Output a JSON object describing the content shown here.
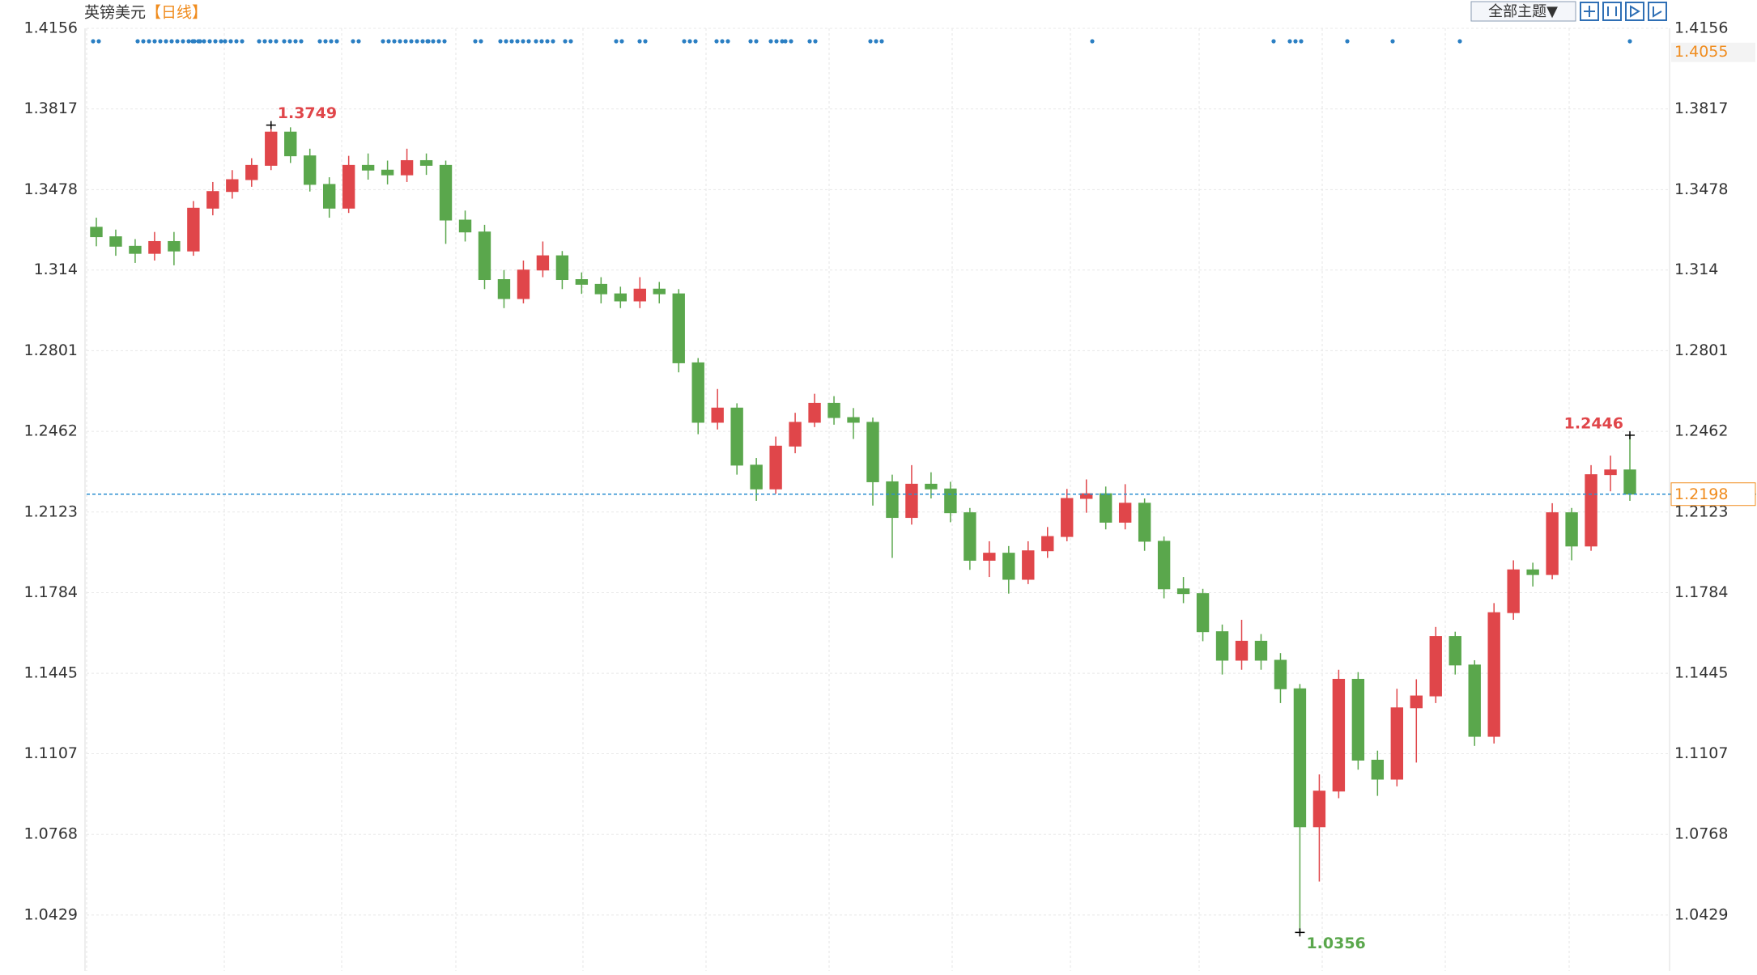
{
  "chart_data": {
    "type": "candlestick",
    "title": "英镑美元",
    "subtitle": "【日线】",
    "toolbar_button": "全部主题▼",
    "categories": [
      null,
      null,
      null,
      null,
      null,
      null,
      null,
      null,
      null,
      null,
      null,
      null,
      null,
      null,
      null,
      null,
      null,
      null,
      null,
      null,
      null,
      null,
      null,
      null,
      null,
      null,
      null,
      null,
      null,
      null,
      null,
      null,
      null,
      null,
      null,
      null,
      null,
      null,
      null,
      null,
      null,
      null,
      null,
      null,
      null,
      null,
      null,
      null,
      null,
      null,
      null,
      null,
      null,
      null,
      null,
      null,
      null,
      null,
      null,
      null,
      null,
      null,
      null,
      null,
      null,
      null,
      null,
      null,
      null,
      null,
      null,
      null,
      null,
      null,
      null,
      null,
      null,
      null,
      null,
      null
    ],
    "open": [
      1.332,
      1.328,
      1.324,
      1.321,
      1.326,
      1.322,
      1.34,
      1.347,
      1.352,
      1.358,
      1.372,
      1.362,
      1.35,
      1.34,
      1.358,
      1.356,
      1.354,
      1.36,
      1.358,
      1.335,
      1.33,
      1.31,
      1.302,
      1.314,
      1.32,
      1.31,
      1.308,
      1.304,
      1.301,
      1.306,
      1.304,
      1.275,
      1.25,
      1.256,
      1.232,
      1.222,
      1.24,
      1.25,
      1.258,
      1.252,
      1.25,
      1.225,
      1.21,
      1.224,
      1.222,
      1.212,
      1.192,
      1.195,
      1.184,
      1.196,
      1.202,
      1.218,
      1.22,
      1.208,
      1.216,
      1.2,
      1.18,
      1.178,
      1.162,
      1.15,
      1.158,
      1.15,
      1.138,
      1.08,
      1.095,
      1.142,
      1.108,
      1.1,
      1.13,
      1.135,
      1.16,
      1.148,
      1.118,
      1.17,
      1.188,
      1.186,
      1.212,
      1.198,
      1.228,
      1.23
    ],
    "high": [
      1.336,
      1.331,
      1.327,
      1.33,
      1.33,
      1.343,
      1.351,
      1.356,
      1.361,
      1.3749,
      1.374,
      1.365,
      1.353,
      1.362,
      1.363,
      1.36,
      1.365,
      1.363,
      1.36,
      1.339,
      1.333,
      1.314,
      1.318,
      1.326,
      1.322,
      1.313,
      1.311,
      1.307,
      1.311,
      1.309,
      1.306,
      1.277,
      1.264,
      1.258,
      1.235,
      1.244,
      1.254,
      1.262,
      1.261,
      1.256,
      1.252,
      1.228,
      1.232,
      1.229,
      1.225,
      1.214,
      1.2,
      1.198,
      1.2,
      1.206,
      1.222,
      1.226,
      1.223,
      1.224,
      1.218,
      1.202,
      1.185,
      1.18,
      1.165,
      1.167,
      1.161,
      1.153,
      1.14,
      1.102,
      1.146,
      1.145,
      1.112,
      1.138,
      1.142,
      1.164,
      1.162,
      1.15,
      1.174,
      1.192,
      1.191,
      1.216,
      1.214,
      1.232,
      1.236,
      1.2446
    ],
    "low": [
      1.324,
      1.32,
      1.317,
      1.318,
      1.316,
      1.32,
      1.337,
      1.344,
      1.349,
      1.356,
      1.359,
      1.347,
      1.336,
      1.338,
      1.352,
      1.35,
      1.351,
      1.354,
      1.325,
      1.326,
      1.306,
      1.298,
      1.3,
      1.311,
      1.306,
      1.304,
      1.3,
      1.298,
      1.298,
      1.3,
      1.271,
      1.245,
      1.247,
      1.228,
      1.217,
      1.22,
      1.237,
      1.248,
      1.249,
      1.243,
      1.215,
      1.193,
      1.207,
      1.218,
      1.208,
      1.188,
      1.185,
      1.178,
      1.182,
      1.193,
      1.2,
      1.212,
      1.205,
      1.205,
      1.196,
      1.176,
      1.174,
      1.158,
      1.144,
      1.146,
      1.146,
      1.132,
      1.0356,
      1.057,
      1.092,
      1.104,
      1.093,
      1.097,
      1.107,
      1.132,
      1.144,
      1.114,
      1.115,
      1.167,
      1.181,
      1.184,
      1.192,
      1.196,
      1.221,
      1.217
    ],
    "close": [
      1.328,
      1.324,
      1.321,
      1.326,
      1.322,
      1.34,
      1.347,
      1.352,
      1.358,
      1.372,
      1.362,
      1.35,
      1.34,
      1.358,
      1.356,
      1.354,
      1.36,
      1.358,
      1.335,
      1.33,
      1.31,
      1.302,
      1.314,
      1.32,
      1.31,
      1.308,
      1.304,
      1.301,
      1.306,
      1.304,
      1.275,
      1.25,
      1.256,
      1.232,
      1.222,
      1.24,
      1.25,
      1.258,
      1.252,
      1.25,
      1.225,
      1.21,
      1.224,
      1.222,
      1.212,
      1.192,
      1.195,
      1.184,
      1.196,
      1.202,
      1.218,
      1.22,
      1.208,
      1.216,
      1.2,
      1.18,
      1.178,
      1.162,
      1.15,
      1.158,
      1.15,
      1.138,
      1.08,
      1.095,
      1.142,
      1.108,
      1.1,
      1.13,
      1.135,
      1.16,
      1.148,
      1.118,
      1.17,
      1.188,
      1.186,
      1.212,
      1.198,
      1.228,
      1.23,
      1.2198
    ],
    "up_color": "#e0464a",
    "down_color": "#5aa74c",
    "ylim": [
      1.0194,
      1.4156
    ],
    "yticks": [
      1.4156,
      1.3817,
      1.3478,
      1.314,
      1.2801,
      1.2462,
      1.2123,
      1.1784,
      1.1445,
      1.1107,
      1.0768,
      1.0429
    ],
    "annotations": [
      1.3749,
      1.0356,
      1.2446
    ],
    "last_price": 1.2198,
    "axis_high_marker": 1.4055,
    "grid": true
  }
}
